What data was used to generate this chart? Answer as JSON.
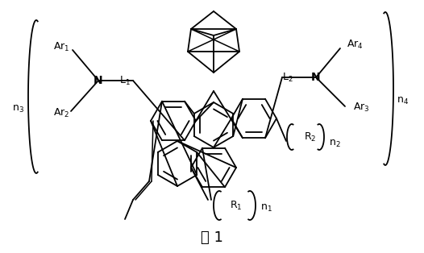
{
  "title": "式 1",
  "title_fontsize": 13,
  "background_color": "#ffffff",
  "figsize": [
    5.26,
    3.14
  ],
  "dpi": 100
}
